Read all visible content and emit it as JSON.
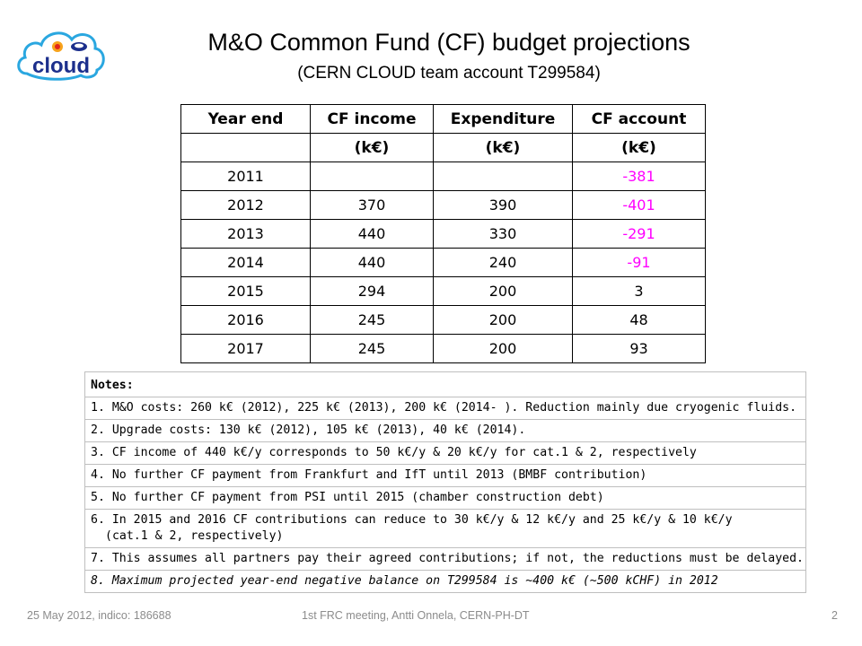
{
  "logo": {
    "text": "cloud",
    "icon": "cloud-logo-icon"
  },
  "title": "M&O Common Fund (CF) budget projections",
  "subtitle": "(CERN CLOUD team account T299584)",
  "table": {
    "header1": [
      "Year end",
      "CF income",
      "Expenditure",
      "CF account"
    ],
    "header2": [
      "",
      "(k€)",
      "(k€)",
      "(k€)"
    ],
    "rows": [
      [
        "2011",
        "",
        "",
        "-381"
      ],
      [
        "2012",
        "370",
        "390",
        "-401"
      ],
      [
        "2013",
        "440",
        "330",
        "-291"
      ],
      [
        "2014",
        "440",
        "240",
        "-91"
      ],
      [
        "2015",
        "294",
        "200",
        "3"
      ],
      [
        "2016",
        "245",
        "200",
        "48"
      ],
      [
        "2017",
        "245",
        "200",
        "93"
      ]
    ],
    "negative_color": "#ff00ff"
  },
  "notes": {
    "heading": "Notes:",
    "items": [
      "1. M&O costs: 260 k€ (2012), 225 k€ (2013), 200 k€ (2014- ). Reduction mainly due cryogenic fluids.",
      "2. Upgrade costs: 130 k€ (2012), 105 k€ (2013), 40 k€ (2014).",
      "3. CF income of 440 k€/y corresponds to 50 k€/y & 20 k€/y for cat.1 & 2, respectively",
      "4. No further CF payment from Frankfurt and IfT until 2013 (BMBF contribution)",
      "5. No further CF payment from PSI until 2015 (chamber construction debt)",
      "6. In 2015 and 2016 CF contributions can reduce to 30 k€/y & 12 k€/y and 25 k€/y & 10 k€/y",
      "(cat.1 & 2, respectively)",
      "7. This assumes all partners pay their agreed contributions; if not, the reductions must be delayed.",
      "8. Maximum projected year-end negative balance on T299584 is ~400 k€ (~500 kCHF) in 2012"
    ]
  },
  "footer": {
    "left": "25 May 2012, indico: 186688",
    "center": "1st FRC meeting, Antti Onnela, CERN-PH-DT",
    "page": "2"
  }
}
